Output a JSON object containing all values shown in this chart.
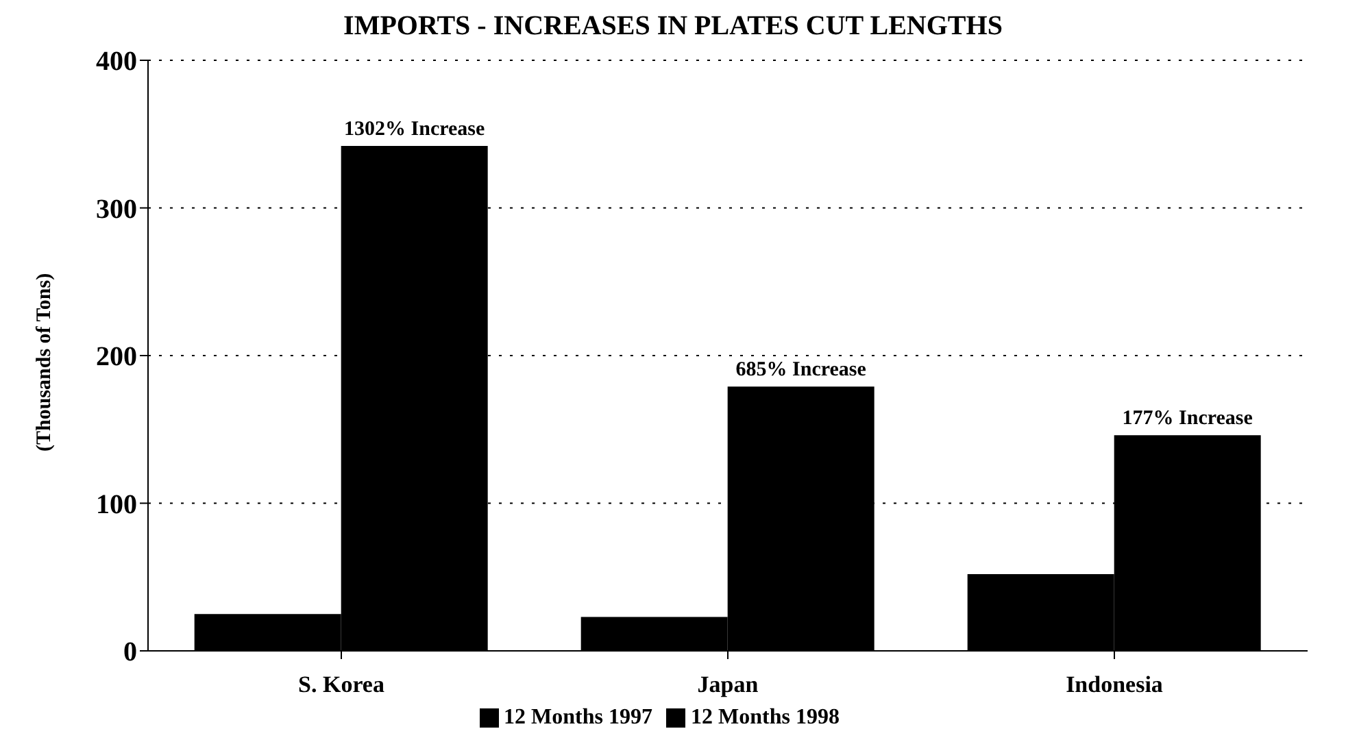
{
  "chart_data": {
    "type": "bar",
    "title": "IMPORTS - INCREASES IN PLATES CUT LENGTHS",
    "ylabel": "(Thousands of Tons)",
    "categories": [
      "S. Korea",
      "Japan",
      "Indonesia"
    ],
    "series": [
      {
        "name": "12 Months 1997",
        "color": "#000000",
        "values": [
          25,
          23,
          52
        ]
      },
      {
        "name": "12 Months 1998",
        "color": "#000000",
        "values": [
          342,
          179,
          146
        ]
      }
    ],
    "annotations": [
      {
        "text": "1302% Increase",
        "x": "S. Korea",
        "y": 342
      },
      {
        "text": "685% Increase",
        "x": "Japan",
        "y": 179
      },
      {
        "text": "177% Increase",
        "x": "Indonesia",
        "y": 146
      }
    ],
    "ylim": [
      0,
      400
    ],
    "yticks": [
      0,
      100,
      200,
      300,
      400
    ],
    "grid": "y",
    "line_style": "dotted",
    "legend": "bottom"
  }
}
